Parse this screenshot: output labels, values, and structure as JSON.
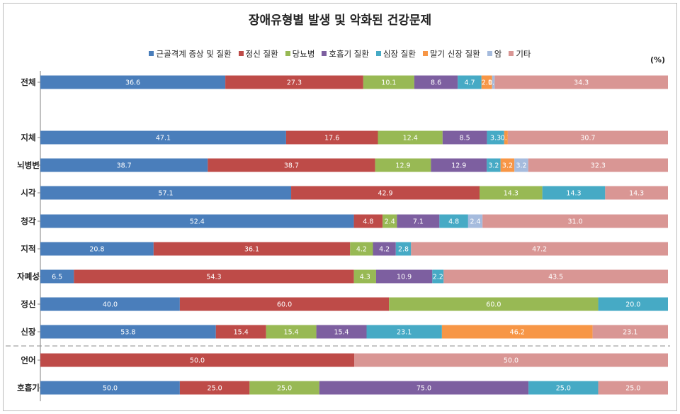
{
  "chart_data": {
    "type": "bar",
    "orientation": "horizontal",
    "stacking": "stacked",
    "title": "장애유형별 발생 및 악화된 건강문제",
    "unit": "(%)",
    "legend_position": "top",
    "grid": false,
    "categories": [
      "전체",
      "지체",
      "뇌병변",
      "시각",
      "청각",
      "지적",
      "자폐성",
      "정신",
      "신장",
      "언어",
      "호흡기"
    ],
    "series": [
      {
        "name": "근골격계 증상 및 질환",
        "color": "#4a7ebb",
        "values": [
          36.6,
          47.1,
          38.7,
          57.1,
          52.4,
          20.8,
          6.5,
          40.0,
          53.8,
          null,
          50.0
        ]
      },
      {
        "name": "정신 질환",
        "color": "#be4b48",
        "values": [
          27.3,
          17.6,
          38.7,
          42.9,
          4.8,
          36.1,
          54.3,
          60.0,
          15.4,
          50.0,
          25.0
        ]
      },
      {
        "name": "당뇨병",
        "color": "#98b954",
        "values": [
          10.1,
          12.4,
          12.9,
          14.3,
          2.4,
          4.2,
          4.3,
          60.0,
          15.4,
          null,
          25.0
        ]
      },
      {
        "name": "호흡기 질환",
        "color": "#7d5fa0",
        "values": [
          8.6,
          8.5,
          12.9,
          null,
          7.1,
          4.2,
          10.9,
          null,
          15.4,
          null,
          75.0
        ]
      },
      {
        "name": "심장 질환",
        "color": "#46aac5",
        "values": [
          4.7,
          3.3,
          3.2,
          14.3,
          4.8,
          2.8,
          2.2,
          20.0,
          23.1,
          null,
          25.0
        ]
      },
      {
        "name": "말기 신장 질환",
        "color": "#f79646",
        "values": [
          2.1,
          0.7,
          3.2,
          null,
          null,
          null,
          null,
          null,
          46.2,
          null,
          null
        ]
      },
      {
        "name": "암",
        "color": "#a5bbdd",
        "values": [
          0.5,
          null,
          3.2,
          null,
          2.4,
          null,
          null,
          null,
          null,
          null,
          null
        ]
      },
      {
        "name": "기타",
        "color": "#d99694",
        "values": [
          34.3,
          30.7,
          32.3,
          14.3,
          31.0,
          47.2,
          43.5,
          null,
          23.1,
          50.0,
          25.0
        ]
      }
    ]
  }
}
